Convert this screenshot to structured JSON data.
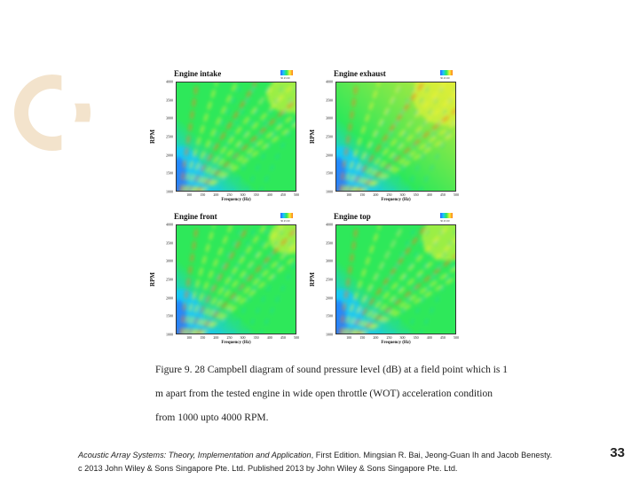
{
  "chart_data": [
    {
      "type": "heatmap",
      "title": "Engine intake",
      "xlabel": "Frequency (Hz)",
      "ylabel": "RPM",
      "x_ticks": [
        "100",
        "150",
        "200",
        "250",
        "300",
        "350",
        "400",
        "450",
        "500"
      ],
      "y_ticks": [
        "4000",
        "3500",
        "3000",
        "2500",
        "2000",
        "1500",
        "1000"
      ],
      "xlim": [
        50,
        500
      ],
      "ylim": [
        1000,
        4000
      ],
      "colorbar_labels": [
        "30",
        "45",
        "60"
      ],
      "colors": [
        "#2a62ff",
        "#19c6ff",
        "#2ee85a",
        "#f4f436",
        "#ff7a1a"
      ]
    },
    {
      "type": "heatmap",
      "title": "Engine exhaust",
      "xlabel": "Frequency (Hz)",
      "ylabel": "RPM",
      "x_ticks": [
        "100",
        "150",
        "200",
        "250",
        "300",
        "350",
        "400",
        "450",
        "500"
      ],
      "y_ticks": [
        "4000",
        "3500",
        "3000",
        "2500",
        "2000",
        "1500",
        "1000"
      ],
      "xlim": [
        50,
        500
      ],
      "ylim": [
        1000,
        4000
      ],
      "colorbar_labels": [
        "30",
        "45",
        "60"
      ],
      "colors": [
        "#2a62ff",
        "#19c6ff",
        "#2ee85a",
        "#f4f436",
        "#ff7a1a"
      ]
    },
    {
      "type": "heatmap",
      "title": "Engine front",
      "xlabel": "Frequency (Hz)",
      "ylabel": "RPM",
      "x_ticks": [
        "100",
        "150",
        "200",
        "250",
        "300",
        "350",
        "400",
        "450",
        "500"
      ],
      "y_ticks": [
        "4000",
        "3500",
        "3000",
        "2500",
        "2000",
        "1500",
        "1000"
      ],
      "xlim": [
        50,
        500
      ],
      "ylim": [
        1000,
        4000
      ],
      "colorbar_labels": [
        "30",
        "45",
        "60"
      ],
      "colors": [
        "#2a62ff",
        "#19c6ff",
        "#2ee85a",
        "#f4f436",
        "#ff7a1a"
      ]
    },
    {
      "type": "heatmap",
      "title": "Engine top",
      "xlabel": "Frequency (Hz)",
      "ylabel": "RPM",
      "x_ticks": [
        "100",
        "150",
        "200",
        "250",
        "300",
        "350",
        "400",
        "450",
        "500"
      ],
      "y_ticks": [
        "4000",
        "3500",
        "3000",
        "2500",
        "2000",
        "1500",
        "1000"
      ],
      "xlim": [
        50,
        500
      ],
      "ylim": [
        1000,
        4000
      ],
      "colorbar_labels": [
        "30",
        "45",
        "60"
      ],
      "colors": [
        "#2a62ff",
        "#19c6ff",
        "#2ee85a",
        "#f4f436",
        "#ff7a1a"
      ]
    }
  ],
  "caption": {
    "line1": "Figure 9. 28 Campbell diagram of sound pressure level (dB) at a field point which is 1",
    "line2": "m apart from the tested engine in wide open throttle (WOT) acceleration condition",
    "line3": "from 1000 upto 4000 RPM."
  },
  "footer": {
    "book_title": "Acoustic Array Systems: Theory, Implementation and Application",
    "rest_line1": ", First Edition. Mingsian R. Bai, Jeong-Guan Ih and Jacob Benesty.",
    "line2": "c 2013 John Wiley & Sons Singapore Pte. Ltd. Published 2013 by John Wiley & Sons Singapore Pte. Ltd."
  },
  "page_number": "33"
}
